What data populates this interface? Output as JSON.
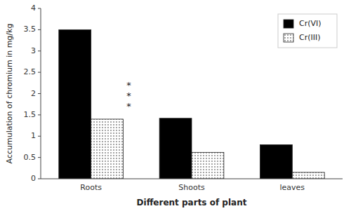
{
  "chart_data": {
    "type": "bar",
    "categories": [
      "Roots",
      "Shoots",
      "leaves"
    ],
    "series": [
      {
        "name": "Cr(VI)",
        "color": "#000000",
        "values": [
          3.5,
          1.42,
          0.8
        ]
      },
      {
        "name": "Cr(III)",
        "color": "#ffffff",
        "values": [
          1.4,
          0.62,
          0.15
        ]
      }
    ],
    "xlabel": "Different parts of plant",
    "ylabel": "Accumulation of chromium in mg/kg",
    "ylim": [
      0,
      4
    ],
    "yticks": [
      0,
      0.5,
      1,
      1.5,
      2,
      2.5,
      3,
      3.5,
      4
    ],
    "annotations": [
      {
        "text": "*",
        "category": "Roots",
        "y": 2.25
      },
      {
        "text": "*",
        "category": "Roots",
        "y": 2.0
      },
      {
        "text": "*",
        "category": "Roots",
        "y": 1.75
      }
    ],
    "legend": "upper right",
    "grid": false
  }
}
